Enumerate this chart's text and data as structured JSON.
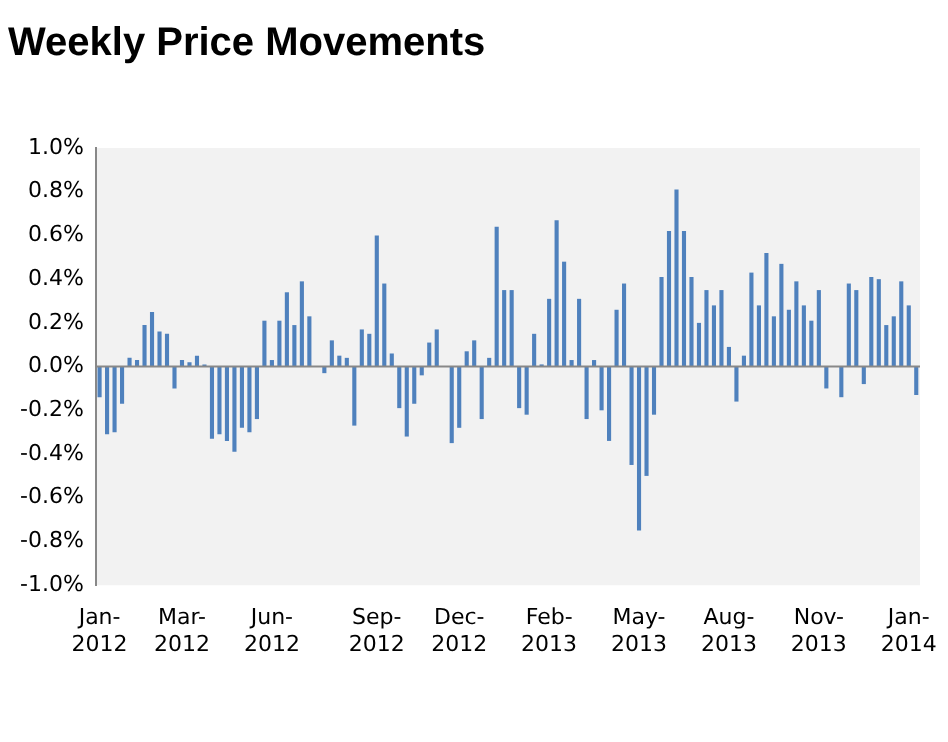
{
  "chart_data": {
    "type": "bar",
    "title": "Weekly Price Movements",
    "categories": [
      "Jan-2012",
      null,
      null,
      null,
      null,
      null,
      null,
      null,
      null,
      null,
      null,
      "Mar-2012",
      null,
      null,
      null,
      null,
      null,
      null,
      null,
      null,
      null,
      null,
      null,
      "Jun-2012",
      null,
      null,
      null,
      null,
      null,
      null,
      null,
      null,
      null,
      null,
      null,
      null,
      null,
      "Sep-2012",
      null,
      null,
      null,
      null,
      null,
      null,
      null,
      null,
      null,
      null,
      "Dec-2012",
      null,
      null,
      null,
      null,
      null,
      null,
      null,
      null,
      null,
      null,
      null,
      "Feb-2013",
      null,
      null,
      null,
      null,
      null,
      null,
      null,
      null,
      null,
      null,
      null,
      "May-2013",
      null,
      null,
      null,
      null,
      null,
      null,
      null,
      null,
      null,
      null,
      null,
      "Aug-2013",
      null,
      null,
      null,
      null,
      null,
      null,
      null,
      null,
      null,
      null,
      null,
      "Nov-2013",
      null,
      null,
      null,
      null,
      null,
      null,
      null,
      null,
      null,
      null,
      null,
      "Jan-2014",
      null
    ],
    "values": [
      -0.14,
      -0.31,
      -0.3,
      -0.17,
      0.04,
      0.03,
      0.19,
      0.25,
      0.16,
      0.15,
      -0.1,
      0.03,
      0.02,
      0.05,
      0.01,
      -0.33,
      -0.31,
      -0.34,
      -0.39,
      -0.28,
      -0.3,
      -0.24,
      0.21,
      0.03,
      0.21,
      0.34,
      0.19,
      0.39,
      0.23,
      0,
      -0.03,
      0.12,
      0.05,
      0.04,
      -0.27,
      0.17,
      0.15,
      0.6,
      0.38,
      0.06,
      -0.19,
      -0.32,
      -0.17,
      -0.04,
      0.11,
      0.17,
      0,
      -0.35,
      -0.28,
      0.07,
      0.12,
      -0.24,
      0.04,
      0.64,
      0.35,
      0.35,
      -0.19,
      -0.22,
      0.15,
      0.01,
      0.31,
      0.67,
      0.48,
      0.03,
      0.31,
      -0.24,
      0.03,
      -0.2,
      -0.34,
      0.26,
      0.38,
      -0.45,
      -0.75,
      -0.5,
      -0.22,
      0.41,
      0.62,
      0.81,
      0.62,
      0.41,
      0.2,
      0.35,
      0.28,
      0.35,
      0.09,
      -0.16,
      0.05,
      0.43,
      0.28,
      0.52,
      0.23,
      0.47,
      0.26,
      0.39,
      0.28,
      0.21,
      0.35,
      -0.1,
      0,
      -0.14,
      0.38,
      0.35,
      -0.08,
      0.41,
      0.4,
      0.19,
      0.23,
      0.39,
      0.28,
      -0.13
    ],
    "color": "#4f81bd",
    "ylim": [
      -1.0,
      1.0
    ],
    "yticks": [
      {
        "value": -1.0,
        "label": "-1.0%"
      },
      {
        "value": -0.8,
        "label": "-0.8%"
      },
      {
        "value": -0.6,
        "label": "-0.6%"
      },
      {
        "value": -0.4,
        "label": "-0.4%"
      },
      {
        "value": -0.2,
        "label": "-0.2%"
      },
      {
        "value": 0,
        "label": "0.0%"
      },
      {
        "value": 0.2,
        "label": "0.2%"
      },
      {
        "value": 0.4,
        "label": "0.4%"
      },
      {
        "value": 0.6,
        "label": "0.6%"
      },
      {
        "value": 0.8,
        "label": "0.8%"
      },
      {
        "value": 1.0,
        "label": "1.0%"
      }
    ]
  }
}
